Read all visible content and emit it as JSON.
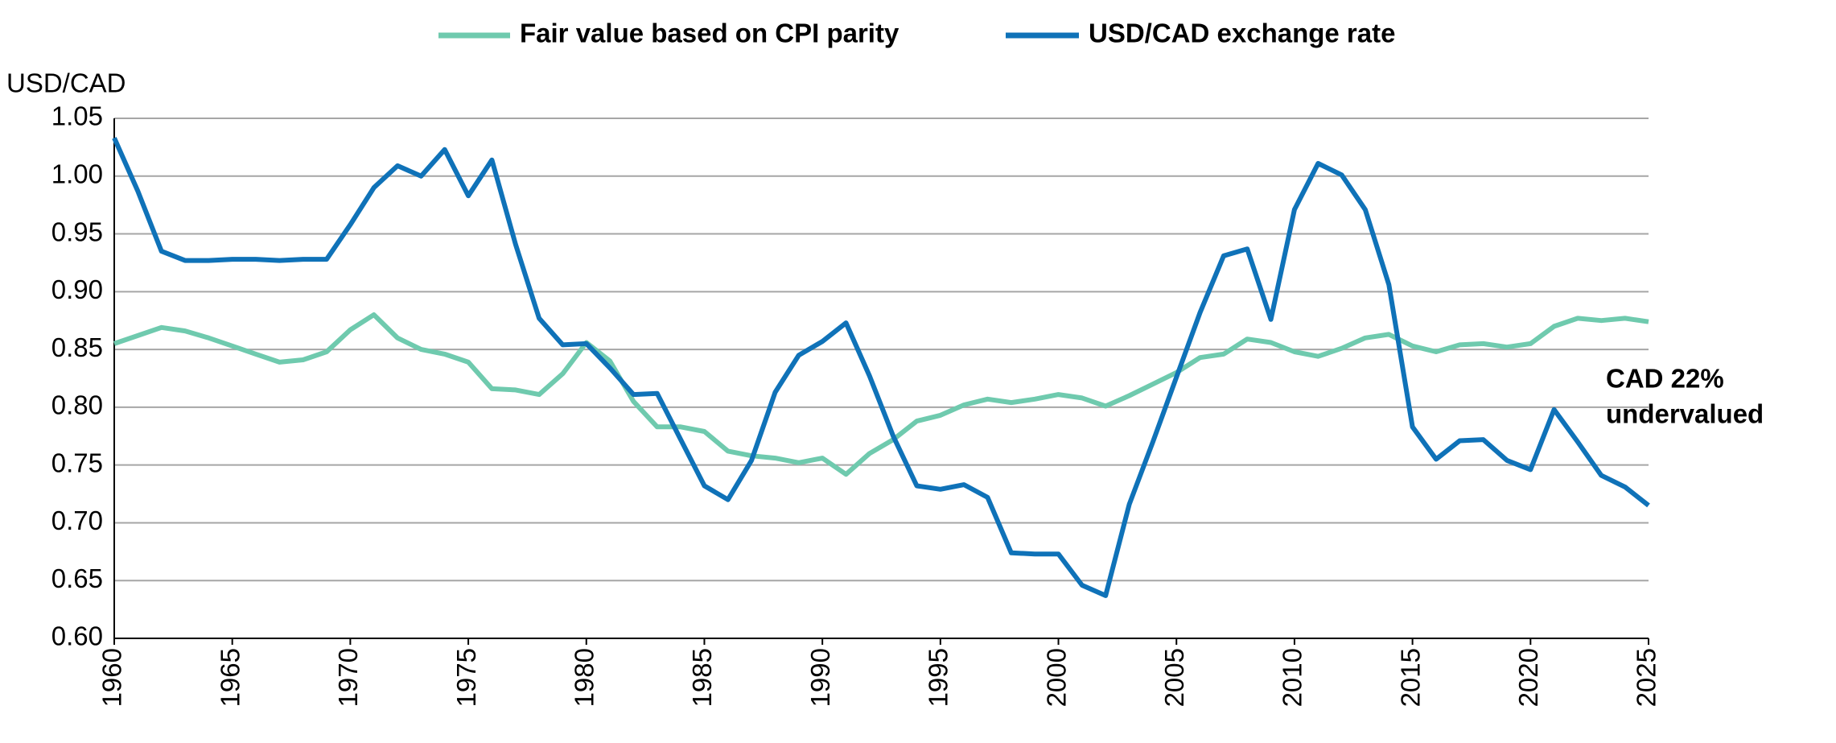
{
  "chart_data": {
    "type": "line",
    "y_axis_label": "USD/CAD",
    "annotation": [
      "CAD 22%",
      "undervalued"
    ],
    "x": [
      1960,
      1961,
      1962,
      1963,
      1964,
      1965,
      1966,
      1967,
      1968,
      1969,
      1970,
      1971,
      1972,
      1973,
      1974,
      1975,
      1976,
      1977,
      1978,
      1979,
      1980,
      1981,
      1982,
      1983,
      1984,
      1985,
      1986,
      1987,
      1988,
      1989,
      1990,
      1991,
      1992,
      1993,
      1994,
      1995,
      1996,
      1997,
      1998,
      1999,
      2000,
      2001,
      2002,
      2003,
      2004,
      2005,
      2006,
      2007,
      2008,
      2009,
      2010,
      2011,
      2012,
      2013,
      2014,
      2015,
      2016,
      2017,
      2018,
      2019,
      2020,
      2021,
      2022,
      2023,
      2024,
      2025
    ],
    "series": [
      {
        "name": "Fair value based on CPI parity",
        "color": "#6fcaae",
        "values": [
          0.855,
          0.862,
          0.869,
          0.866,
          0.86,
          0.853,
          0.846,
          0.839,
          0.841,
          0.848,
          0.867,
          0.88,
          0.86,
          0.85,
          0.846,
          0.839,
          0.816,
          0.815,
          0.811,
          0.829,
          0.856,
          0.84,
          0.805,
          0.783,
          0.783,
          0.779,
          0.762,
          0.758,
          0.756,
          0.752,
          0.756,
          0.742,
          0.76,
          0.772,
          0.788,
          0.793,
          0.802,
          0.807,
          0.804,
          0.807,
          0.811,
          0.808,
          0.801,
          0.81,
          0.82,
          0.83,
          0.843,
          0.846,
          0.859,
          0.856,
          0.848,
          0.844,
          0.851,
          0.86,
          0.863,
          0.853,
          0.848,
          0.854,
          0.855,
          0.852,
          0.855,
          0.87,
          0.877,
          0.875,
          0.877,
          0.874
        ]
      },
      {
        "name": "USD/CAD exchange rate",
        "color": "#0f72b8",
        "values": [
          1.033,
          0.987,
          0.935,
          0.927,
          0.927,
          0.928,
          0.928,
          0.927,
          0.928,
          0.928,
          0.958,
          0.99,
          1.009,
          1.0,
          1.023,
          0.983,
          1.014,
          0.941,
          0.877,
          0.854,
          0.855,
          0.834,
          0.811,
          0.812,
          0.772,
          0.732,
          0.72,
          0.754,
          0.813,
          0.845,
          0.857,
          0.873,
          0.827,
          0.775,
          0.732,
          0.729,
          0.733,
          0.722,
          0.674,
          0.673,
          0.673,
          0.646,
          0.637,
          0.716,
          0.77,
          0.826,
          0.882,
          0.931,
          0.937,
          0.876,
          0.971,
          1.011,
          1.001,
          0.971,
          0.906,
          0.783,
          0.755,
          0.771,
          0.772,
          0.754,
          0.746,
          0.798,
          0.77,
          0.741,
          0.731,
          0.715
        ]
      }
    ],
    "xlim": [
      1960,
      2025
    ],
    "xticks": [
      1960,
      1965,
      1970,
      1975,
      1980,
      1985,
      1990,
      1995,
      2000,
      2005,
      2010,
      2015,
      2020,
      2025
    ],
    "ylim": [
      0.6,
      1.05
    ],
    "yticks": [
      {
        "value": 0.6,
        "label": "0.60"
      },
      0.65,
      {
        "value": 0.7,
        "label": "0.70"
      },
      0.75,
      {
        "value": 0.8,
        "label": "0.80"
      },
      0.85,
      {
        "value": 0.9,
        "label": "0.90"
      },
      0.95,
      {
        "value": 1.0,
        "label": "1.00"
      },
      1.05
    ],
    "grid": true,
    "legend": "top"
  }
}
